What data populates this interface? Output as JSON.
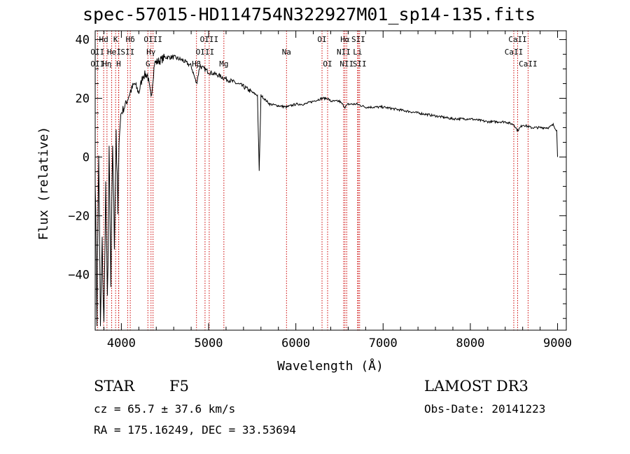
{
  "header": {
    "title": "spec-57015-HD114754N322927M01_sp14-135.fits"
  },
  "info": {
    "object_class": "STAR",
    "subclass": "F5",
    "redshift": "cz = 65.7 ± 37.6 km/s",
    "coords": "RA = 175.16249, DEC =  33.53694",
    "survey": "LAMOST DR3",
    "obs_date": "Obs-Date: 20141223"
  },
  "chart_data": {
    "type": "line",
    "title": "spec-57015-HD114754N322927M01_sp14-135.fits",
    "xlabel": "Wavelength (Å)",
    "ylabel": "Flux (relative)",
    "xlim": [
      3700,
      9100
    ],
    "ylim": [
      -59,
      43
    ],
    "xticks": [
      4000,
      5000,
      6000,
      7000,
      8000,
      9000
    ],
    "yticks": [
      -40,
      -20,
      0,
      20,
      40
    ],
    "grid": false,
    "line_color": "#000000",
    "marker_color": "#cc0000",
    "spectrum": {
      "x": [
        3700,
        3720,
        3740,
        3760,
        3780,
        3800,
        3820,
        3840,
        3860,
        3880,
        3900,
        3920,
        3940,
        3960,
        3980,
        4000,
        4050,
        4100,
        4150,
        4200,
        4250,
        4300,
        4340,
        4380,
        4450,
        4500,
        4600,
        4700,
        4800,
        4861,
        4900,
        5000,
        5100,
        5170,
        5250,
        5400,
        5500,
        5560,
        5580,
        5600,
        5700,
        5890,
        6000,
        6100,
        6200,
        6300,
        6364,
        6400,
        6500,
        6563,
        6600,
        6700,
        6800,
        7000,
        7200,
        7400,
        7600,
        7800,
        8000,
        8200,
        8400,
        8500,
        8542,
        8600,
        8700,
        8800,
        8900,
        8950,
        8990,
        9000
      ],
      "flux": [
        -5,
        -55,
        2,
        -58,
        -30,
        -58,
        -10,
        -50,
        0,
        -45,
        5,
        -30,
        10,
        -20,
        12,
        15,
        18,
        22,
        25,
        22,
        28,
        28,
        20,
        32,
        33,
        34,
        34,
        33,
        31,
        25,
        31,
        29,
        28,
        27,
        26,
        24,
        22,
        21,
        -5,
        21,
        18,
        17,
        18,
        18,
        19,
        20,
        20,
        19,
        19,
        17,
        18,
        18,
        17,
        17,
        16,
        15,
        14,
        13,
        13,
        12,
        12,
        11,
        9,
        11,
        10,
        10,
        10,
        11,
        9,
        0
      ]
    },
    "lines": [
      {
        "label": "Hd",
        "x": 3797,
        "row": 0
      },
      {
        "label": "OII",
        "x": 3727,
        "row": 1
      },
      {
        "label": "OII",
        "x": 3727,
        "row": 2
      },
      {
        "label": "He",
        "x": 3889,
        "row": 1
      },
      {
        "label": "Hη",
        "x": 3835,
        "row": 2
      },
      {
        "label": "K",
        "x": 3934,
        "row": 0
      },
      {
        "label": "I",
        "x": 3970,
        "row": 1
      },
      {
        "label": "H",
        "x": 3968,
        "row": 2
      },
      {
        "label": "Hδ",
        "x": 4102,
        "row": 0
      },
      {
        "label": "SII",
        "x": 4072,
        "row": 1
      },
      {
        "label": "OIII",
        "x": 4363,
        "row": 0
      },
      {
        "label": "Hγ",
        "x": 4340,
        "row": 1
      },
      {
        "label": "G",
        "x": 4304,
        "row": 2
      },
      {
        "label": "Hβ",
        "x": 4861,
        "row": 2
      },
      {
        "label": "OIII",
        "x": 5007,
        "row": 0
      },
      {
        "label": "OIII",
        "x": 4959,
        "row": 1
      },
      {
        "label": "Mg",
        "x": 5175,
        "row": 2
      },
      {
        "label": "Na",
        "x": 5893,
        "row": 1
      },
      {
        "label": "OI",
        "x": 6300,
        "row": 0
      },
      {
        "label": "OI",
        "x": 6364,
        "row": 2
      },
      {
        "label": "Hα",
        "x": 6563,
        "row": 0
      },
      {
        "label": "SII",
        "x": 6716,
        "row": 0
      },
      {
        "label": "NII",
        "x": 6548,
        "row": 1
      },
      {
        "label": "Li",
        "x": 6708,
        "row": 1
      },
      {
        "label": "NII",
        "x": 6583,
        "row": 2
      },
      {
        "label": "SII",
        "x": 6731,
        "row": 2
      },
      {
        "label": "CaII",
        "x": 8542,
        "row": 0
      },
      {
        "label": "CaII",
        "x": 8498,
        "row": 1
      },
      {
        "label": "CaII",
        "x": 8662,
        "row": 2
      }
    ]
  }
}
